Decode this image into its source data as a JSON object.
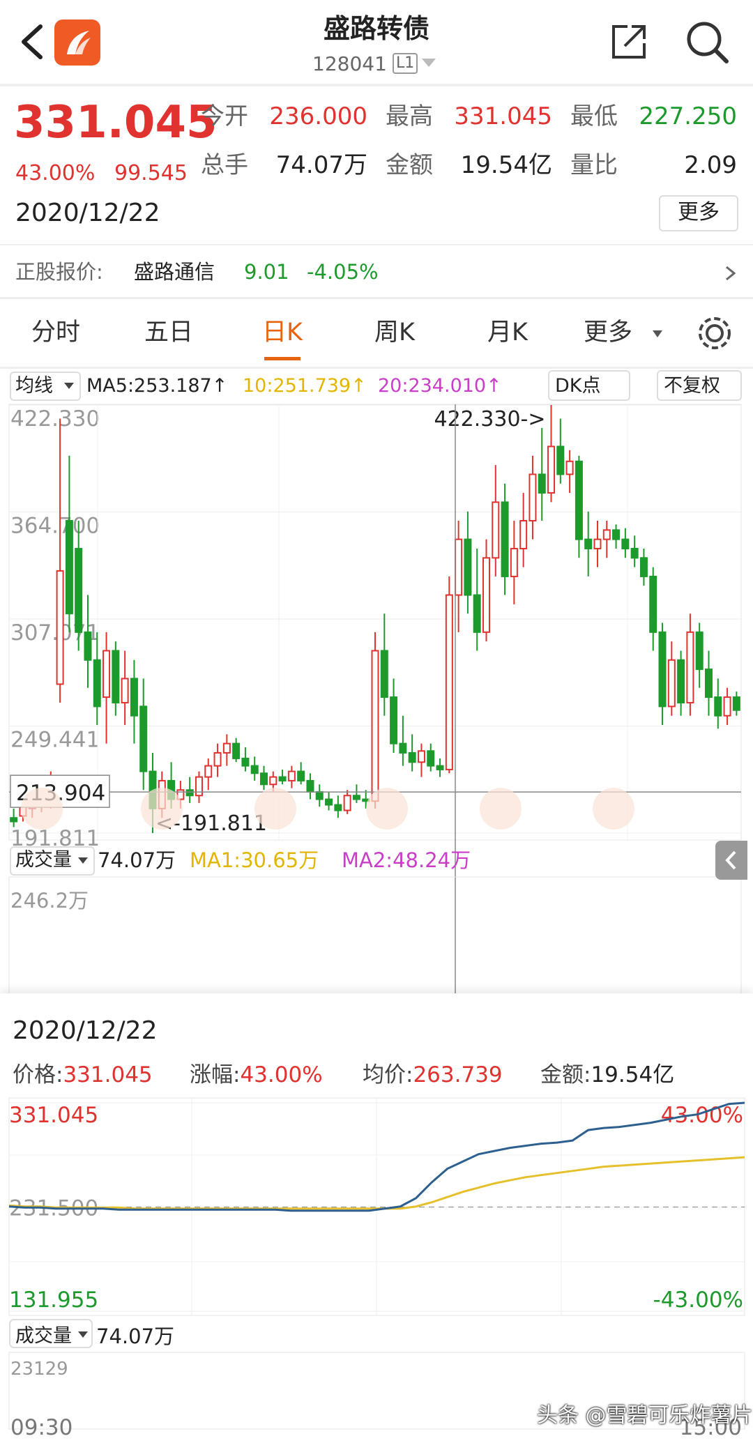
{
  "header": {
    "title": "盛路转债",
    "code": "128041",
    "level": "L1"
  },
  "quote": {
    "price": "331.045",
    "change_pct": "43.00%",
    "change": "99.545",
    "date": "2020/12/22",
    "more": "更多",
    "fields": [
      {
        "label": "今开",
        "value": "236.000",
        "tone": "up"
      },
      {
        "label": "最高",
        "value": "331.045",
        "tone": "up"
      },
      {
        "label": "最低",
        "value": "227.250",
        "tone": "down"
      },
      {
        "label": "总手",
        "value": "74.07万",
        "tone": "flat"
      },
      {
        "label": "金额",
        "value": "19.54亿",
        "tone": "flat"
      },
      {
        "label": "量比",
        "value": "2.09",
        "tone": "flat"
      }
    ]
  },
  "stock": {
    "label": "正股报价:",
    "name": "盛路通信",
    "price": "9.01",
    "change": "-4.05%"
  },
  "tabs": [
    "分时",
    "五日",
    "日K",
    "周K",
    "月K",
    "更多"
  ],
  "selected_tab": 2,
  "indicators": {
    "ma_label": "均线",
    "ma5": "MA5:253.187↑",
    "ma10": "10:251.739↑",
    "ma20": "20:234.010↑",
    "dk": "DK点",
    "adjust": "不复权"
  },
  "chart_data": [
    {
      "type": "candlestick",
      "ylim": [
        191.811,
        422.33
      ],
      "yticks": [
        {
          "value": 422.33,
          "label": "422.330"
        },
        {
          "value": 364.7,
          "label": "364.700"
        },
        {
          "value": 307.071,
          "label": "307.071"
        },
        {
          "value": 249.441,
          "label": "249.441"
        },
        {
          "value": 191.811,
          "label": "191.811"
        }
      ],
      "up_color": "#e0322f",
      "down_color": "#1d9a2c",
      "open": [
        200,
        201,
        205,
        208,
        210,
        272,
        360,
        345,
        300,
        285,
        265,
        290,
        262,
        275,
        260,
        225,
        205,
        220,
        210,
        215,
        212,
        222,
        228,
        235,
        240,
        232,
        228,
        224,
        218,
        222,
        220,
        225,
        220,
        214,
        210,
        207,
        204,
        212,
        210,
        209,
        290,
        265,
        240,
        235,
        230,
        236,
        228,
        226,
        320,
        350,
        320,
        300,
        340,
        370,
        330,
        345,
        360,
        385,
        375,
        400,
        385,
        392,
        350,
        345,
        350,
        355,
        350,
        345,
        340,
        330,
        300,
        260,
        285,
        262,
        300,
        280,
        265,
        255,
        265
      ],
      "high": [
        205,
        210,
        212,
        215,
        225,
        415,
        395,
        360,
        320,
        300,
        300,
        295,
        290,
        285,
        275,
        235,
        225,
        230,
        220,
        222,
        225,
        232,
        240,
        245,
        243,
        238,
        233,
        228,
        225,
        226,
        228,
        230,
        224,
        218,
        214,
        212,
        215,
        218,
        215,
        300,
        310,
        275,
        255,
        245,
        240,
        240,
        232,
        330,
        360,
        365,
        345,
        350,
        390,
        380,
        360,
        375,
        395,
        410,
        422.33,
        415,
        398,
        395,
        365,
        360,
        360,
        358,
        356,
        352,
        345,
        335,
        305,
        295,
        290,
        310,
        305,
        290,
        275,
        270,
        268
      ],
      "low": [
        195,
        198,
        200,
        203,
        205,
        262,
        300,
        290,
        270,
        250,
        240,
        255,
        250,
        240,
        215,
        191.811,
        200,
        205,
        205,
        208,
        208,
        215,
        222,
        228,
        230,
        225,
        220,
        215,
        214,
        218,
        216,
        218,
        210,
        206,
        204,
        200,
        202,
        208,
        205,
        205,
        255,
        235,
        228,
        225,
        222,
        225,
        222,
        224,
        300,
        310,
        290,
        295,
        330,
        320,
        315,
        335,
        350,
        360,
        370,
        380,
        375,
        340,
        330,
        335,
        340,
        345,
        340,
        335,
        325,
        290,
        250,
        255,
        255,
        255,
        270,
        255,
        248,
        250,
        255
      ],
      "close": [
        198,
        206,
        208,
        210,
        220,
        333,
        310,
        300,
        285,
        260,
        290,
        262,
        275,
        255,
        225,
        205,
        220,
        210,
        215,
        212,
        222,
        228,
        235,
        240,
        232,
        228,
        224,
        218,
        222,
        220,
        225,
        220,
        214,
        210,
        207,
        204,
        212,
        210,
        209,
        290,
        265,
        240,
        235,
        230,
        236,
        228,
        226,
        320,
        350,
        320,
        300,
        340,
        370,
        330,
        345,
        360,
        385,
        375,
        400,
        385,
        392,
        350,
        345,
        350,
        355,
        350,
        345,
        340,
        330,
        300,
        260,
        285,
        262,
        300,
        280,
        265,
        255,
        265,
        258
      ],
      "max_label": "422.330->",
      "min_label": "<-191.811",
      "crosshair": {
        "value": 213.904,
        "label": "213.904"
      },
      "volume": {
        "label": "成交量",
        "total": "74.07万",
        "ma1": "MA1:30.65万",
        "ma2": "MA2:48.24万",
        "max": "246.2万"
      }
    },
    {
      "type": "line",
      "title": "2020/12/22",
      "info": [
        {
          "label": "价格:",
          "value": "331.045"
        },
        {
          "label": "涨幅:",
          "value": "43.00%"
        },
        {
          "label": "均价:",
          "value": "263.739"
        },
        {
          "label": "金额:",
          "value": "19.54亿"
        }
      ],
      "ylim": [
        131.955,
        331.045
      ],
      "yticks": [
        331.045,
        {
          "value": 231.5,
          "label": "231.500"
        },
        131.955
      ],
      "y2lim": [
        -43,
        43
      ],
      "y2ticks": [
        {
          "value": 43,
          "label": "43.00%"
        },
        {
          "value": -43,
          "label": "-43.00%"
        }
      ],
      "xlabels": [
        "09:30",
        "15:00"
      ],
      "series": [
        {
          "name": "价格",
          "color": "#2d5f8f",
          "values": [
            232,
            231,
            231,
            230,
            230,
            230,
            230,
            229,
            229,
            229,
            229,
            229,
            229,
            229,
            229,
            229,
            229,
            229,
            228,
            228,
            228,
            228,
            228,
            228,
            230,
            232,
            240,
            255,
            268,
            275,
            282,
            285,
            288,
            290,
            292,
            293,
            295,
            305,
            307,
            308,
            310,
            312,
            315,
            318,
            320,
            325,
            330,
            331.045
          ]
        },
        {
          "name": "均价",
          "color": "#e6c02a",
          "values": [
            233,
            232,
            232,
            231,
            231,
            231,
            231,
            231,
            230,
            230,
            230,
            230,
            230,
            230,
            230,
            230,
            230,
            230,
            230,
            230,
            230,
            230,
            230,
            230,
            230,
            230,
            232,
            236,
            241,
            246,
            250,
            254,
            257,
            260,
            262,
            264,
            266,
            268,
            270,
            271,
            272,
            273,
            274,
            275,
            276,
            277,
            278,
            279
          ]
        }
      ],
      "volume": {
        "label": "成交量",
        "total": "74.07万",
        "max": "23129"
      }
    }
  ],
  "watermark": "头条 @雪碧可乐炸薯片"
}
